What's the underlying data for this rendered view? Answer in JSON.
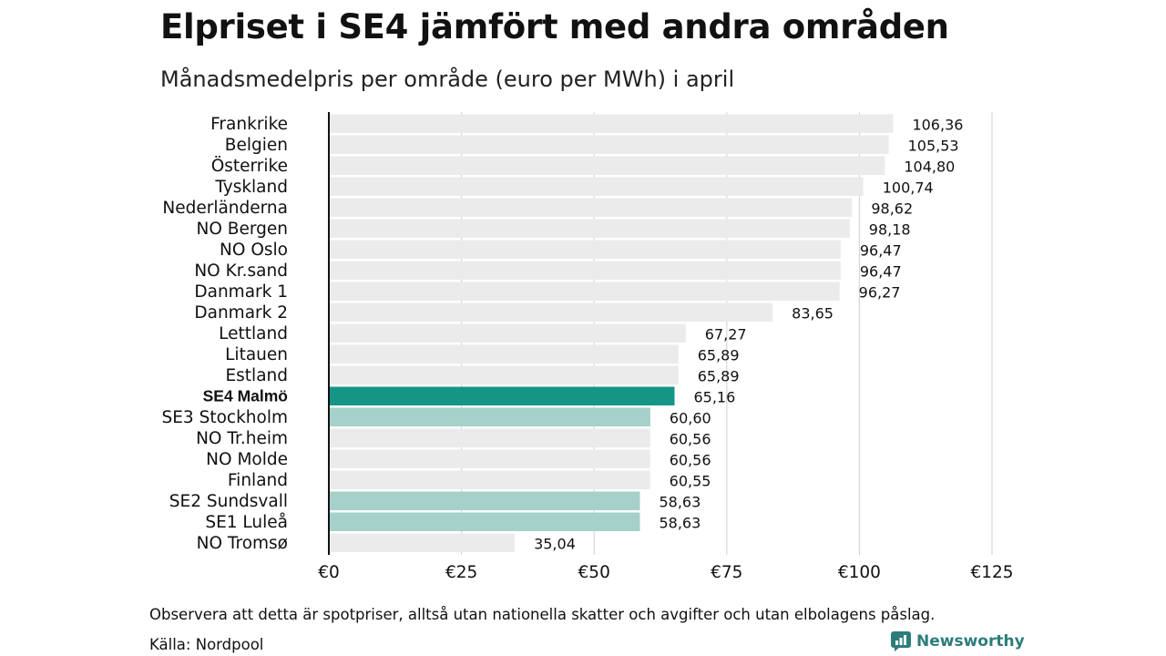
{
  "title": "Elpriset i SE4 jämfört med andra områden",
  "subtitle": "Månadsmedelpris per område (euro per MWh) i april",
  "note": "Observera att detta är spotpriser, alltså utan nationella skatter och avgifter och utan elbolagens påslag.",
  "source": "Källa: Nordpool",
  "brand": {
    "name": "Newsworthy",
    "icon": "newsworthy-logo-icon"
  },
  "colors": {
    "highlight": "#149585",
    "swedish": "#a6d1ca",
    "other": "#ebebeb",
    "grid": "#cfcfcf",
    "axis": "#111111"
  },
  "chart_data": {
    "type": "bar",
    "orientation": "horizontal",
    "xlim": [
      0,
      125
    ],
    "grid": true,
    "x_ticks": [
      "€0",
      "€25",
      "€50",
      "€75",
      "€100",
      "€125"
    ],
    "x_tick_values": [
      0,
      25,
      50,
      75,
      100,
      125
    ],
    "categories": [
      "Frankrike",
      "Belgien",
      "Österrike",
      "Tyskland",
      "Nederländerna",
      "NO Bergen",
      "NO Oslo",
      "NO Kr.sand",
      "Danmark 1",
      "Danmark 2",
      "Lettland",
      "Litauen",
      "Estland",
      "SE4 Malmö",
      "SE3 Stockholm",
      "NO Tr.heim",
      "NO Molde",
      "Finland",
      "SE2 Sundsvall",
      "SE1 Luleå",
      "NO Tromsø"
    ],
    "values": [
      106.36,
      105.53,
      104.8,
      100.74,
      98.62,
      98.18,
      96.47,
      96.47,
      96.27,
      83.65,
      67.27,
      65.89,
      65.89,
      65.16,
      60.6,
      60.56,
      60.56,
      60.55,
      58.63,
      58.63,
      35.04
    ],
    "value_labels": [
      "106,36",
      "105,53",
      "104,80",
      "100,74",
      "98,62",
      "98,18",
      "96,47",
      "96,47",
      "96,27",
      "83,65",
      "67,27",
      "65,89",
      "65,89",
      "65,16",
      "60,60",
      "60,56",
      "60,56",
      "60,55",
      "58,63",
      "58,63",
      "35,04"
    ],
    "bar_groups": [
      "other",
      "other",
      "other",
      "other",
      "other",
      "other",
      "other",
      "other",
      "other",
      "other",
      "other",
      "other",
      "other",
      "highlight",
      "swedish",
      "other",
      "other",
      "other",
      "swedish",
      "swedish",
      "other"
    ],
    "bold_categories": [
      "SE4 Malmö"
    ]
  }
}
